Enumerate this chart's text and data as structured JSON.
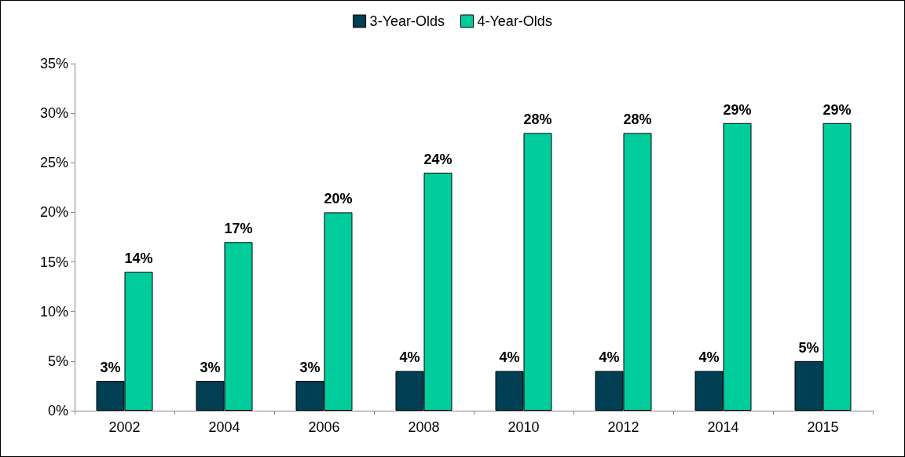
{
  "chart_data": {
    "type": "bar",
    "categories": [
      "2002",
      "2004",
      "2006",
      "2008",
      "2010",
      "2012",
      "2014",
      "2015"
    ],
    "series": [
      {
        "name": "3-Year-Olds",
        "color": "#003f54",
        "values": [
          3,
          3,
          3,
          4,
          4,
          4,
          4,
          5
        ],
        "value_labels": [
          "3%",
          "3%",
          "3%",
          "4%",
          "4%",
          "4%",
          "4%",
          "5%"
        ]
      },
      {
        "name": "4-Year-Olds",
        "color": "#00cc9c",
        "values": [
          14,
          17,
          20,
          24,
          28,
          28,
          29,
          29
        ],
        "value_labels": [
          "14%",
          "17%",
          "20%",
          "24%",
          "28%",
          "28%",
          "29%",
          "29%"
        ]
      }
    ],
    "ylim": [
      0,
      35
    ],
    "yticks": [
      {
        "value": 0,
        "label": "0%"
      },
      {
        "value": 5,
        "label": "5%"
      },
      {
        "value": 10,
        "label": "10%"
      },
      {
        "value": 15,
        "label": "15%"
      },
      {
        "value": 20,
        "label": "20%"
      },
      {
        "value": 25,
        "label": "25%"
      },
      {
        "value": 30,
        "label": "30%"
      },
      {
        "value": 35,
        "label": "35%"
      }
    ],
    "grid": false,
    "legend": "top"
  }
}
